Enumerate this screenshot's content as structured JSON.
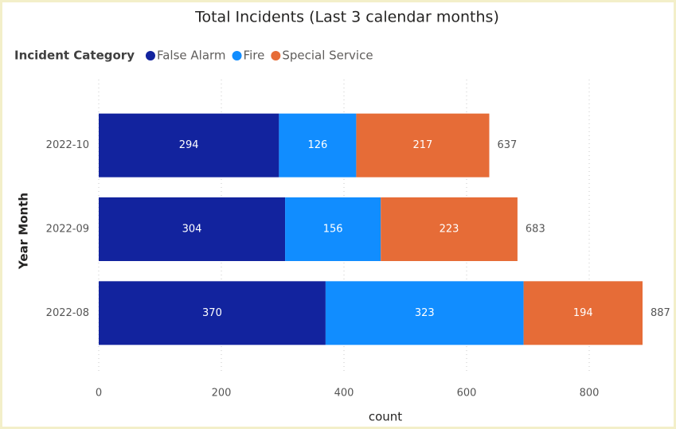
{
  "chart_data": {
    "type": "stacked_barh",
    "title": "Total Incidents (Last 3 calendar months)",
    "legend_title": "Incident Category",
    "categories": [
      "2022-10",
      "2022-09",
      "2022-08"
    ],
    "series": [
      {
        "name": "False Alarm",
        "color": "#12239e",
        "values": [
          294,
          304,
          370
        ]
      },
      {
        "name": "Fire",
        "color": "#118dff",
        "values": [
          126,
          156,
          323
        ]
      },
      {
        "name": "Special Service",
        "color": "#e66c37",
        "values": [
          217,
          223,
          194
        ]
      }
    ],
    "totals": [
      637,
      683,
      887
    ],
    "xlim": [
      0,
      900
    ],
    "xticks": [
      0,
      200,
      400,
      600,
      800
    ],
    "xlabel": "count",
    "ylabel": "Year Month",
    "grid": true,
    "legend": "top-left"
  }
}
